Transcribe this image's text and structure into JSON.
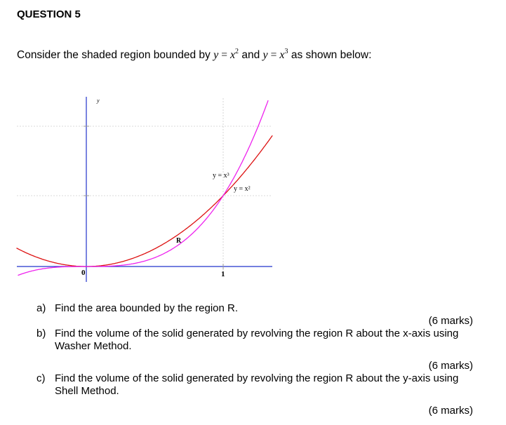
{
  "question": {
    "title": "QUESTION 5"
  },
  "intro": {
    "prefix": "Consider the shaded region bounded by ",
    "eq1_lhs": "y",
    "eq1_rhs_base": "x",
    "eq1_rhs_exp": "2",
    "joiner": "and",
    "eq2_lhs": "y",
    "eq2_rhs_base": "x",
    "eq2_rhs_exp": "3",
    "suffix": " as shown below:"
  },
  "graph": {
    "y_axis_label": "y",
    "origin_label": "0",
    "x_tick_label": "1",
    "curve_cubic_label": "y = x³",
    "curve_square_label": "y = x²",
    "region_label": "R",
    "colors": {
      "axis": "#2233cc",
      "square": "#dd1111",
      "cubic": "#ee22ee",
      "grid": "#cccccc"
    }
  },
  "chart_data": {
    "type": "line",
    "series": [
      {
        "name": "y = x²",
        "function": "x^2"
      },
      {
        "name": "y = x³",
        "function": "x^3"
      }
    ],
    "intersections": [
      [
        0,
        0
      ],
      [
        1,
        1
      ]
    ],
    "region": "R",
    "x_ticks": [
      "0",
      "1"
    ]
  },
  "parts": [
    {
      "label": "a)",
      "text": "Find the area bounded by the region R.",
      "marks": "(6 marks)"
    },
    {
      "label": "b)",
      "text": "Find the volume of the solid generated by revolving the region R about the x-axis using Washer Method.",
      "marks": "(6 marks)"
    },
    {
      "label": "c)",
      "text": "Find the volume of the solid generated by revolving the region R about the y-axis using Shell Method.",
      "marks": "(6 marks)"
    }
  ]
}
